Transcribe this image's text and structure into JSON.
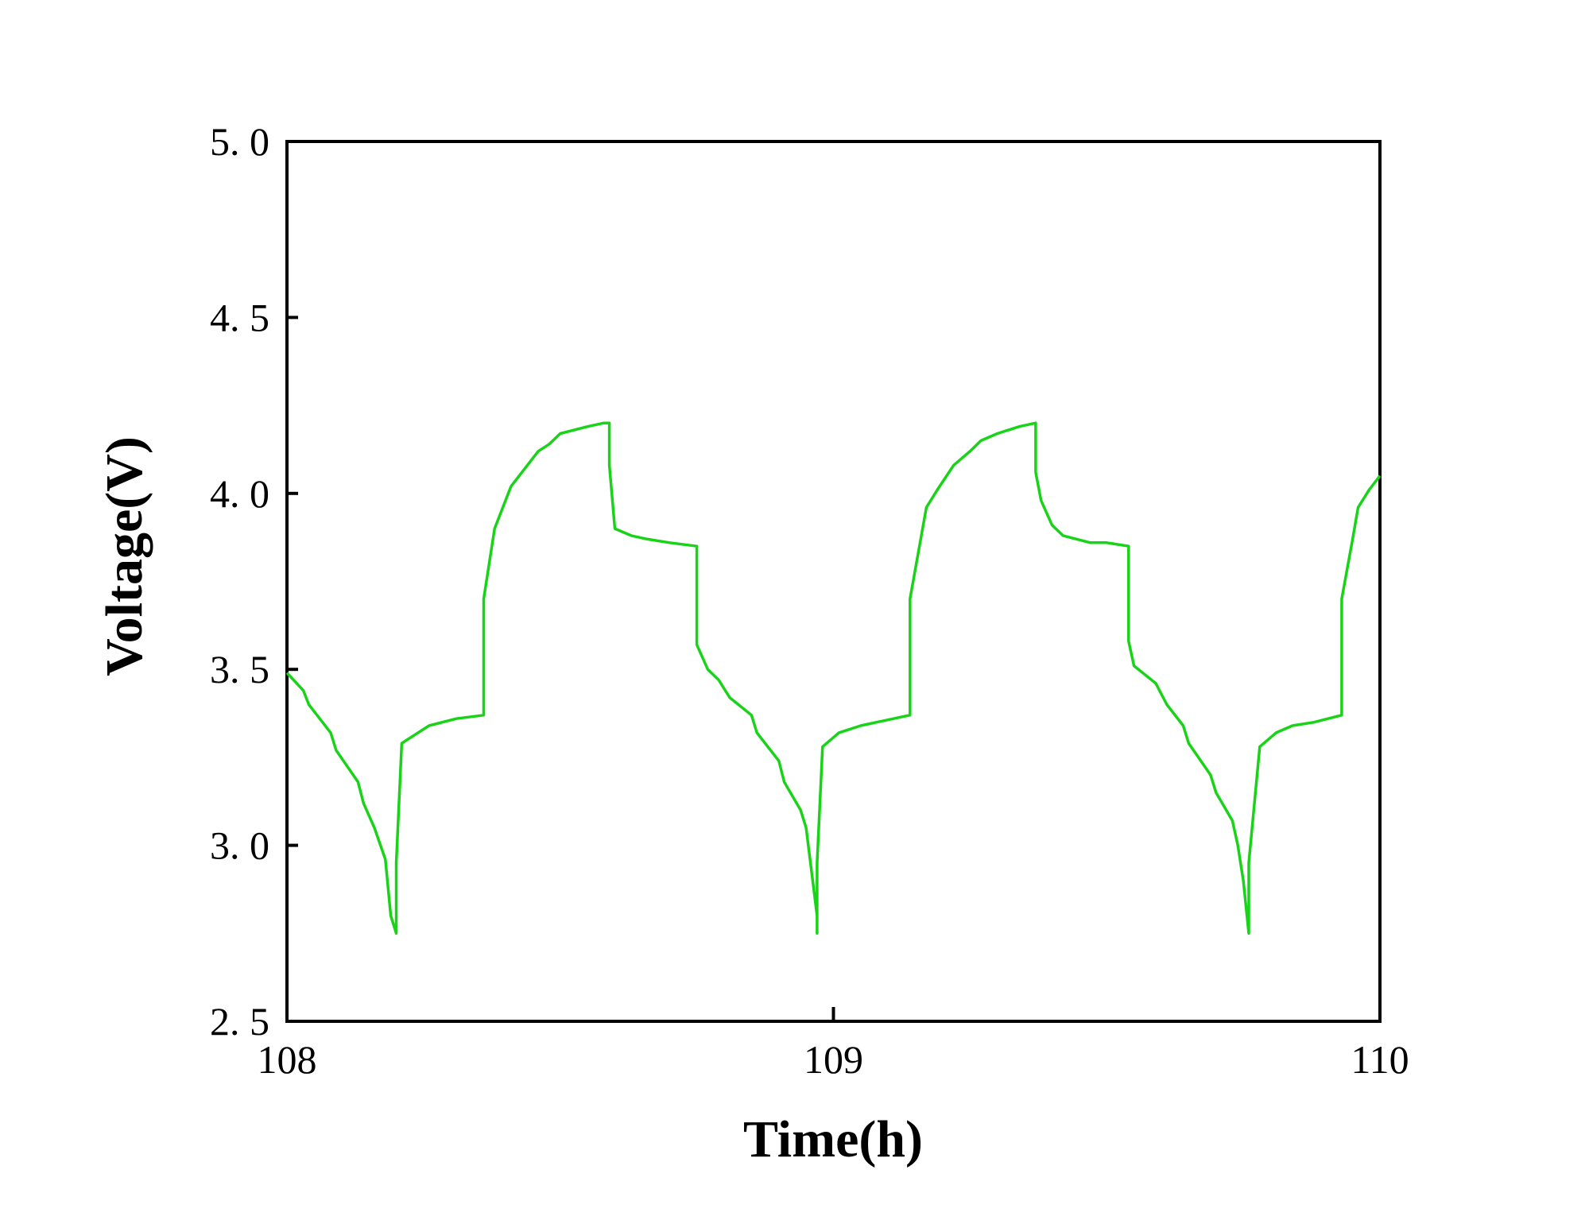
{
  "chart_data": {
    "type": "line",
    "title": "",
    "xlabel": "Time(h)",
    "ylabel": "Voltage(V)",
    "xlim": [
      108,
      110
    ],
    "ylim": [
      2.5,
      5.0
    ],
    "x_ticks": [
      108,
      109,
      110
    ],
    "x_tick_labels": [
      "108",
      "109",
      "110"
    ],
    "y_ticks": [
      2.5,
      3.0,
      3.5,
      4.0,
      4.5,
      5.0
    ],
    "y_tick_labels": [
      "2. 5",
      "3. 0",
      "3. 5",
      "4. 0",
      "4. 5",
      "5. 0"
    ],
    "grid": false,
    "legend": null,
    "series": [
      {
        "color": "#19d319",
        "points": [
          [
            108.0,
            3.49
          ],
          [
            108.03,
            3.44
          ],
          [
            108.04,
            3.4
          ],
          [
            108.08,
            3.32
          ],
          [
            108.09,
            3.27
          ],
          [
            108.13,
            3.18
          ],
          [
            108.14,
            3.12
          ],
          [
            108.16,
            3.05
          ],
          [
            108.18,
            2.96
          ],
          [
            108.19,
            2.8
          ],
          [
            108.2,
            2.75
          ],
          [
            108.2,
            2.95
          ],
          [
            108.21,
            3.29
          ],
          [
            108.23,
            3.31
          ],
          [
            108.26,
            3.34
          ],
          [
            108.31,
            3.36
          ],
          [
            108.36,
            3.37
          ],
          [
            108.36,
            3.7
          ],
          [
            108.38,
            3.9
          ],
          [
            108.41,
            4.02
          ],
          [
            108.43,
            4.06
          ],
          [
            108.46,
            4.12
          ],
          [
            108.48,
            4.14
          ],
          [
            108.5,
            4.17
          ],
          [
            108.55,
            4.19
          ],
          [
            108.58,
            4.2
          ],
          [
            108.59,
            4.2
          ],
          [
            108.59,
            4.08
          ],
          [
            108.6,
            3.9
          ],
          [
            108.63,
            3.88
          ],
          [
            108.66,
            3.87
          ],
          [
            108.7,
            3.86
          ],
          [
            108.75,
            3.85
          ],
          [
            108.75,
            3.57
          ],
          [
            108.77,
            3.5
          ],
          [
            108.79,
            3.47
          ],
          [
            108.81,
            3.42
          ],
          [
            108.85,
            3.37
          ],
          [
            108.86,
            3.32
          ],
          [
            108.9,
            3.24
          ],
          [
            108.91,
            3.18
          ],
          [
            108.94,
            3.1
          ],
          [
            108.95,
            3.05
          ],
          [
            108.97,
            2.8
          ],
          [
            108.97,
            2.75
          ],
          [
            108.97,
            2.95
          ],
          [
            108.98,
            3.28
          ],
          [
            109.01,
            3.32
          ],
          [
            109.05,
            3.34
          ],
          [
            109.08,
            3.35
          ],
          [
            109.11,
            3.36
          ],
          [
            109.14,
            3.37
          ],
          [
            109.14,
            3.7
          ],
          [
            109.17,
            3.96
          ],
          [
            109.19,
            4.01
          ],
          [
            109.22,
            4.08
          ],
          [
            109.25,
            4.12
          ],
          [
            109.27,
            4.15
          ],
          [
            109.3,
            4.17
          ],
          [
            109.32,
            4.18
          ],
          [
            109.34,
            4.19
          ],
          [
            109.37,
            4.2
          ],
          [
            109.37,
            4.06
          ],
          [
            109.38,
            3.98
          ],
          [
            109.4,
            3.91
          ],
          [
            109.42,
            3.88
          ],
          [
            109.47,
            3.86
          ],
          [
            109.5,
            3.86
          ],
          [
            109.54,
            3.85
          ],
          [
            109.54,
            3.58
          ],
          [
            109.55,
            3.51
          ],
          [
            109.59,
            3.46
          ],
          [
            109.61,
            3.4
          ],
          [
            109.64,
            3.34
          ],
          [
            109.65,
            3.29
          ],
          [
            109.69,
            3.2
          ],
          [
            109.7,
            3.15
          ],
          [
            109.73,
            3.07
          ],
          [
            109.74,
            3.0
          ],
          [
            109.75,
            2.9
          ],
          [
            109.76,
            2.75
          ],
          [
            109.76,
            2.95
          ],
          [
            109.78,
            3.28
          ],
          [
            109.81,
            3.32
          ],
          [
            109.84,
            3.34
          ],
          [
            109.88,
            3.35
          ],
          [
            109.93,
            3.37
          ],
          [
            109.93,
            3.7
          ],
          [
            109.95,
            3.87
          ],
          [
            109.96,
            3.96
          ],
          [
            109.98,
            4.01
          ],
          [
            110.0,
            4.05
          ]
        ]
      }
    ]
  }
}
